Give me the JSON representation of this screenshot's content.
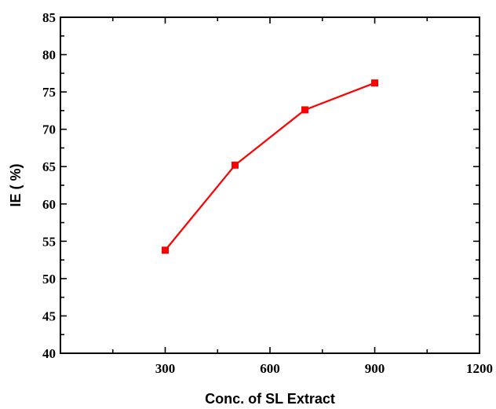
{
  "chart_data": {
    "type": "line",
    "xlabel": "Conc. of SL Extract",
    "ylabel": "IE ( %)",
    "xlim": [
      0,
      1200
    ],
    "ylim": [
      40,
      85
    ],
    "x_ticks": [
      300,
      600,
      900,
      1200
    ],
    "y_ticks": [
      40,
      45,
      50,
      55,
      60,
      65,
      70,
      75,
      80,
      85
    ],
    "grid": false,
    "legend": "none",
    "series": [
      {
        "color": "#ff0000",
        "marker": "square",
        "points": [
          {
            "x": 300,
            "y": 53.8
          },
          {
            "x": 500,
            "y": 65.2
          },
          {
            "x": 700,
            "y": 72.6
          },
          {
            "x": 900,
            "y": 76.2
          }
        ]
      }
    ]
  }
}
